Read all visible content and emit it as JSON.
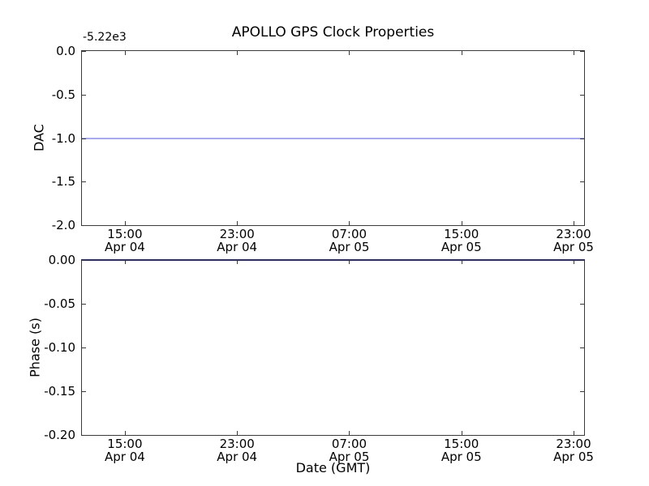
{
  "figure": {
    "title": "APOLLO GPS Clock Properties"
  },
  "chart_data": [
    {
      "type": "line",
      "title": "APOLLO GPS Clock Properties",
      "ylabel": "DAC",
      "y_axis_offset": "-5.22e3",
      "ylim": [
        -2.0,
        0.0
      ],
      "ytick_labels": [
        "0.0",
        "-0.5",
        "-1.0",
        "-1.5",
        "-2.0"
      ],
      "xtick_labels": [
        [
          "15:00",
          "Apr 04"
        ],
        [
          "23:00",
          "Apr 04"
        ],
        [
          "07:00",
          "Apr 05"
        ],
        [
          "15:00",
          "Apr 05"
        ],
        [
          "23:00",
          "Apr 05"
        ]
      ],
      "grid": false,
      "legend": null,
      "series": [
        {
          "name": "dac",
          "base_color": "#0000ff",
          "rendered_color": "#a8aaee",
          "constant_value": -1.0,
          "note": "flat horizontal line at DAC = -1.0 (with axis offset -5.22e3), spanning the full x-range"
        }
      ]
    },
    {
      "type": "line",
      "title": "",
      "ylabel": "Phase (s)",
      "xlabel": "Date (GMT)",
      "ylim": [
        -0.2,
        0.0
      ],
      "ytick_labels": [
        "0.00",
        "-0.05",
        "-0.10",
        "-0.15",
        "-0.20"
      ],
      "xtick_labels": [
        [
          "15:00",
          "Apr 04"
        ],
        [
          "23:00",
          "Apr 04"
        ],
        [
          "07:00",
          "Apr 05"
        ],
        [
          "15:00",
          "Apr 05"
        ],
        [
          "23:00",
          "Apr 05"
        ]
      ],
      "grid": false,
      "legend": null,
      "series": [
        {
          "name": "phase",
          "base_color": "#0000ff",
          "rendered_color": "#2d2d5e",
          "constant_value": 0.0,
          "note": "flat horizontal line at Phase = 0.00 lying on the top axis spine, spanning the full x-range"
        }
      ]
    }
  ]
}
